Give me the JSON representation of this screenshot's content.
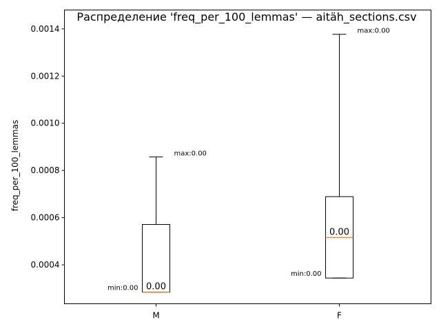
{
  "chart_data": {
    "type": "box",
    "title": "Распределение 'freq_per_100_lemmas' — aitäh_sections.csv",
    "xlabel": "",
    "ylabel": "freq_per_100_lemmas",
    "ylim": [
      0.000235,
      0.00148
    ],
    "yticks": [
      0.0004,
      0.0006,
      0.0008,
      0.001,
      0.0012,
      0.0014
    ],
    "ytick_labels": [
      "0.0004",
      "0.0006",
      "0.0008",
      "0.0010",
      "0.0012",
      "0.0014"
    ],
    "categories": [
      "M",
      "F"
    ],
    "grid": false,
    "boxes": [
      {
        "category": "M",
        "min": 0.000284,
        "q1": 0.000284,
        "median": 0.000284,
        "q3": 0.000571,
        "max": 0.000857,
        "median_label": "0.00",
        "min_label": "min:0.00",
        "max_label": "max:0.00"
      },
      {
        "category": "F",
        "min": 0.000344,
        "q1": 0.000344,
        "median": 0.000516,
        "q3": 0.000689,
        "max": 0.001377,
        "median_label": "0.00",
        "min_label": "min:0.00",
        "max_label": "max:0.00"
      }
    ],
    "colors": {
      "box": "#000000",
      "median": "#ff7f0e",
      "whisker": "#000000",
      "background": "#ffffff"
    }
  }
}
